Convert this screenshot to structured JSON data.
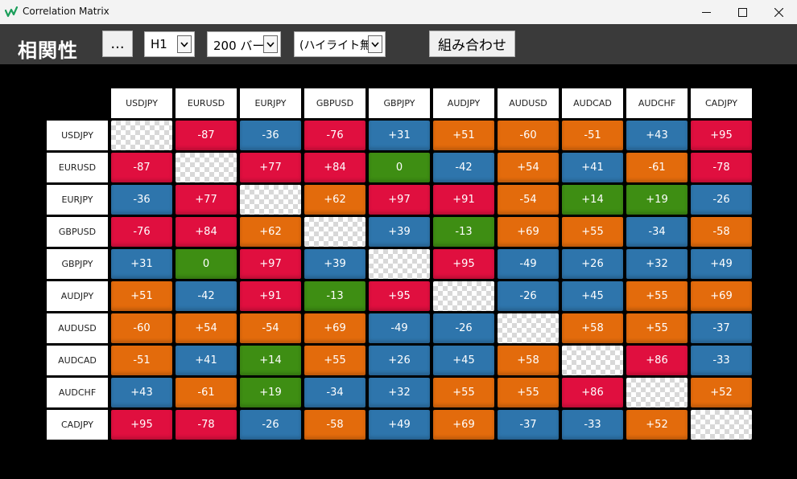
{
  "window": {
    "title": "Correlation Matrix",
    "minimize": "—",
    "maximize": "☐",
    "close": "✕"
  },
  "toolbar": {
    "heading": "相関性",
    "more_label": "...",
    "timeframe": "H1",
    "bars": "200 バー",
    "highlight": "(ハイライト無)",
    "combine_label": "組み合わせ"
  },
  "colors": {
    "red": "#e00f3f",
    "blue": "#2e75ac",
    "orange": "#e36b0c",
    "green": "#3e8e13"
  },
  "matrix": {
    "symbols": [
      "USDJPY",
      "EURUSD",
      "EURJPY",
      "GBPUSD",
      "GBPJPY",
      "AUDJPY",
      "AUDUSD",
      "AUDCAD",
      "AUDCHF",
      "CADJPY"
    ],
    "rows": [
      [
        {
          "v": "",
          "c": "empty"
        },
        {
          "v": "-87",
          "c": "red"
        },
        {
          "v": "-36",
          "c": "blue"
        },
        {
          "v": "-76",
          "c": "red"
        },
        {
          "v": "+31",
          "c": "blue"
        },
        {
          "v": "+51",
          "c": "orange"
        },
        {
          "v": "-60",
          "c": "orange"
        },
        {
          "v": "-51",
          "c": "orange"
        },
        {
          "v": "+43",
          "c": "blue"
        },
        {
          "v": "+95",
          "c": "red"
        }
      ],
      [
        {
          "v": "-87",
          "c": "red"
        },
        {
          "v": "",
          "c": "empty"
        },
        {
          "v": "+77",
          "c": "red"
        },
        {
          "v": "+84",
          "c": "red"
        },
        {
          "v": "0",
          "c": "green"
        },
        {
          "v": "-42",
          "c": "blue"
        },
        {
          "v": "+54",
          "c": "orange"
        },
        {
          "v": "+41",
          "c": "blue"
        },
        {
          "v": "-61",
          "c": "orange"
        },
        {
          "v": "-78",
          "c": "red"
        }
      ],
      [
        {
          "v": "-36",
          "c": "blue"
        },
        {
          "v": "+77",
          "c": "red"
        },
        {
          "v": "",
          "c": "empty"
        },
        {
          "v": "+62",
          "c": "orange"
        },
        {
          "v": "+97",
          "c": "red"
        },
        {
          "v": "+91",
          "c": "red"
        },
        {
          "v": "-54",
          "c": "orange"
        },
        {
          "v": "+14",
          "c": "green"
        },
        {
          "v": "+19",
          "c": "green"
        },
        {
          "v": "-26",
          "c": "blue"
        }
      ],
      [
        {
          "v": "-76",
          "c": "red"
        },
        {
          "v": "+84",
          "c": "red"
        },
        {
          "v": "+62",
          "c": "orange"
        },
        {
          "v": "",
          "c": "empty"
        },
        {
          "v": "+39",
          "c": "blue"
        },
        {
          "v": "-13",
          "c": "green"
        },
        {
          "v": "+69",
          "c": "orange"
        },
        {
          "v": "+55",
          "c": "orange"
        },
        {
          "v": "-34",
          "c": "blue"
        },
        {
          "v": "-58",
          "c": "orange"
        }
      ],
      [
        {
          "v": "+31",
          "c": "blue"
        },
        {
          "v": "0",
          "c": "green"
        },
        {
          "v": "+97",
          "c": "red"
        },
        {
          "v": "+39",
          "c": "blue"
        },
        {
          "v": "",
          "c": "empty"
        },
        {
          "v": "+95",
          "c": "red"
        },
        {
          "v": "-49",
          "c": "blue"
        },
        {
          "v": "+26",
          "c": "blue"
        },
        {
          "v": "+32",
          "c": "blue"
        },
        {
          "v": "+49",
          "c": "blue"
        }
      ],
      [
        {
          "v": "+51",
          "c": "orange"
        },
        {
          "v": "-42",
          "c": "blue"
        },
        {
          "v": "+91",
          "c": "red"
        },
        {
          "v": "-13",
          "c": "green"
        },
        {
          "v": "+95",
          "c": "red"
        },
        {
          "v": "",
          "c": "empty"
        },
        {
          "v": "-26",
          "c": "blue"
        },
        {
          "v": "+45",
          "c": "blue"
        },
        {
          "v": "+55",
          "c": "orange"
        },
        {
          "v": "+69",
          "c": "orange"
        }
      ],
      [
        {
          "v": "-60",
          "c": "orange"
        },
        {
          "v": "+54",
          "c": "orange"
        },
        {
          "v": "-54",
          "c": "orange"
        },
        {
          "v": "+69",
          "c": "orange"
        },
        {
          "v": "-49",
          "c": "blue"
        },
        {
          "v": "-26",
          "c": "blue"
        },
        {
          "v": "",
          "c": "empty"
        },
        {
          "v": "+58",
          "c": "orange"
        },
        {
          "v": "+55",
          "c": "orange"
        },
        {
          "v": "-37",
          "c": "blue"
        }
      ],
      [
        {
          "v": "-51",
          "c": "orange"
        },
        {
          "v": "+41",
          "c": "blue"
        },
        {
          "v": "+14",
          "c": "green"
        },
        {
          "v": "+55",
          "c": "orange"
        },
        {
          "v": "+26",
          "c": "blue"
        },
        {
          "v": "+45",
          "c": "blue"
        },
        {
          "v": "+58",
          "c": "orange"
        },
        {
          "v": "",
          "c": "empty"
        },
        {
          "v": "+86",
          "c": "red"
        },
        {
          "v": "-33",
          "c": "blue"
        }
      ],
      [
        {
          "v": "+43",
          "c": "blue"
        },
        {
          "v": "-61",
          "c": "orange"
        },
        {
          "v": "+19",
          "c": "green"
        },
        {
          "v": "-34",
          "c": "blue"
        },
        {
          "v": "+32",
          "c": "blue"
        },
        {
          "v": "+55",
          "c": "orange"
        },
        {
          "v": "+55",
          "c": "orange"
        },
        {
          "v": "+86",
          "c": "red"
        },
        {
          "v": "",
          "c": "empty"
        },
        {
          "v": "+52",
          "c": "orange"
        }
      ],
      [
        {
          "v": "+95",
          "c": "red"
        },
        {
          "v": "-78",
          "c": "red"
        },
        {
          "v": "-26",
          "c": "blue"
        },
        {
          "v": "-58",
          "c": "orange"
        },
        {
          "v": "+49",
          "c": "blue"
        },
        {
          "v": "+69",
          "c": "orange"
        },
        {
          "v": "-37",
          "c": "blue"
        },
        {
          "v": "-33",
          "c": "blue"
        },
        {
          "v": "+52",
          "c": "orange"
        },
        {
          "v": "",
          "c": "empty"
        }
      ]
    ]
  }
}
